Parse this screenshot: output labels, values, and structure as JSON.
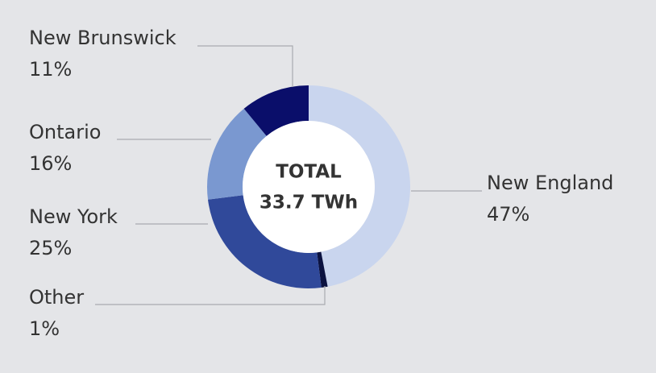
{
  "chart_data": {
    "type": "donut",
    "center_title": "TOTAL",
    "center_value": "33.7 TWh",
    "categories": [
      "New England",
      "Other",
      "New York",
      "Ontario",
      "New Brunswick"
    ],
    "values": [
      47,
      1,
      25,
      16,
      11
    ],
    "value_labels": [
      "47%",
      "1%",
      "25%",
      "16%",
      "11%"
    ],
    "colors": [
      "#c9d5ee",
      "#0b1240",
      "#30499a",
      "#7a98d0",
      "#0a0e6a"
    ]
  }
}
